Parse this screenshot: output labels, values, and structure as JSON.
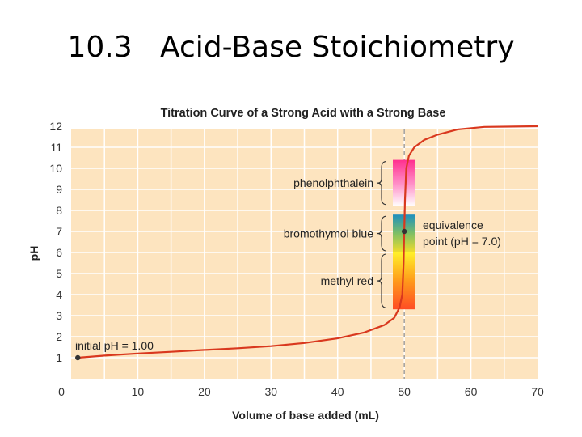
{
  "slide": {
    "title": "10.3   Acid-Base Stoichiometry"
  },
  "chart_data": {
    "type": "line",
    "title": "Titration Curve of a Strong Acid with a Strong Base",
    "xlabel": "Volume of base added (mL)",
    "ylabel": "pH",
    "xlim": [
      0,
      70
    ],
    "ylim": [
      0,
      12
    ],
    "xticks": [
      0,
      10,
      20,
      30,
      40,
      50,
      60,
      70
    ],
    "yticks": [
      1,
      2,
      3,
      4,
      5,
      6,
      7,
      8,
      9,
      10,
      11,
      12
    ],
    "grid": true,
    "series": [
      {
        "color": "#d9381e",
        "x": [
          1,
          5,
          10,
          15,
          20,
          25,
          30,
          35,
          40,
          44,
          47,
          48.5,
          49.3,
          49.7,
          49.9,
          50,
          50.1,
          50.3,
          50.7,
          51.5,
          53,
          55,
          58,
          62,
          70
        ],
        "y": [
          1.0,
          1.1,
          1.2,
          1.28,
          1.37,
          1.45,
          1.55,
          1.7,
          1.92,
          2.2,
          2.55,
          2.9,
          3.4,
          4.0,
          5.5,
          7.0,
          8.5,
          10.0,
          10.6,
          11.0,
          11.35,
          11.6,
          11.85,
          11.97,
          12.0
        ]
      }
    ],
    "points": [
      {
        "x": 1,
        "y": 1.0
      },
      {
        "x": 50,
        "y": 7.0
      }
    ],
    "equivalence_line_x": 50,
    "indicators": [
      {
        "name": "phenolphthalein",
        "low": 8.2,
        "high": 10.4,
        "colors": [
          "#ffffff",
          "#ff8cc6",
          "#ff2f8e"
        ]
      },
      {
        "name": "bromothymol blue",
        "low": 6.0,
        "high": 7.8,
        "colors": [
          "#f2dc2a",
          "#7fbf64",
          "#1e8fbe"
        ]
      },
      {
        "name": "methyl red",
        "low": 3.3,
        "high": 6.0,
        "colors": [
          "#ff4c25",
          "#ff9a1a",
          "#fff02a"
        ]
      }
    ],
    "annotations": {
      "initial": "initial pH = 1.00",
      "equivalence_line1": "equivalence",
      "equivalence_line2": "point (pH = 7.0)"
    },
    "colors": {
      "background": "#fde4bf",
      "grid": "#ffffff",
      "curve": "#d9381e",
      "dashed": "#8a8a8a"
    }
  }
}
